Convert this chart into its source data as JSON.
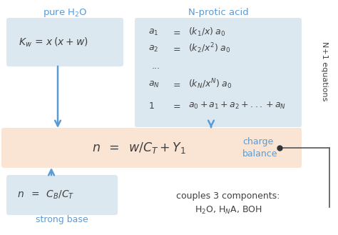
{
  "bg_color": "#ffffff",
  "box_blue_light": "#dce8f0",
  "box_orange_light": "#fae4d4",
  "arrow_color": "#5b9bd5",
  "text_blue": "#5b9bd5",
  "text_dark": "#404040",
  "title_pure_h2o": "pure H$_2$O",
  "title_n_protic": "N-protic acid",
  "label_n_plus1": "N+1 equations",
  "label_charge": "charge\nbalance",
  "label_base": "strong base",
  "label_couples": "couples 3 components:\nH$_2$O, H$_N$A, BOH"
}
